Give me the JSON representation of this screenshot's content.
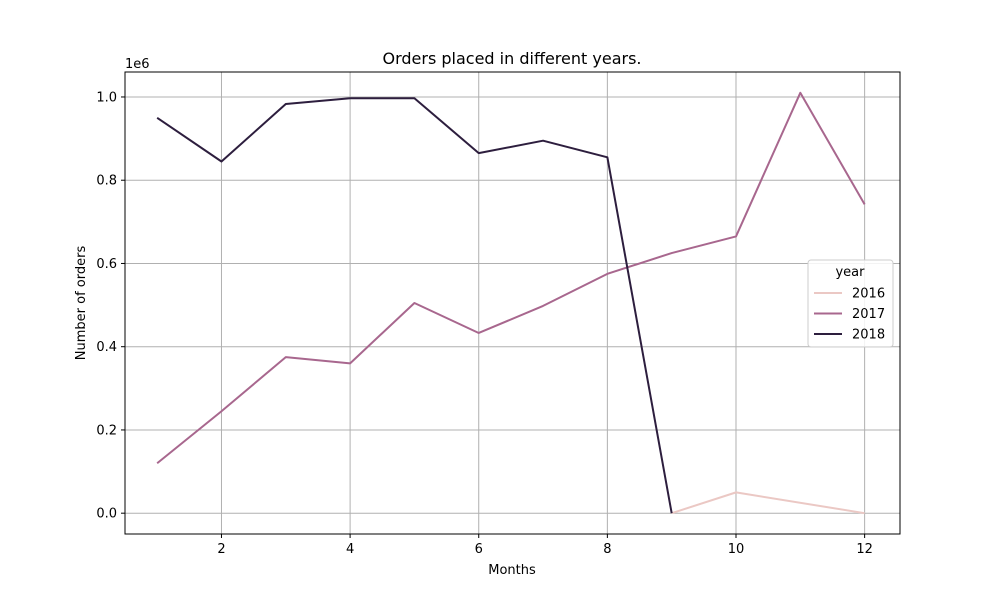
{
  "chart_data": {
    "type": "line",
    "title": "Orders placed in different years.",
    "xlabel": "Months",
    "ylabel": "Number of orders",
    "y_scale_label": "1e6",
    "xlim": [
      0.5,
      12.55
    ],
    "ylim": [
      -0.05,
      1.06
    ],
    "x_ticks": [
      2,
      4,
      6,
      8,
      10,
      12
    ],
    "y_ticks": [
      0.0,
      0.2,
      0.4,
      0.6,
      0.8,
      1.0
    ],
    "x_tick_labels": [
      "2",
      "4",
      "6",
      "8",
      "10",
      "12"
    ],
    "y_tick_labels": [
      "0.0",
      "0.2",
      "0.4",
      "0.6",
      "0.8",
      "1.0"
    ],
    "grid": true,
    "legend": {
      "title": "year",
      "placement": "center-right"
    },
    "series": [
      {
        "name": "2016",
        "color": "#ebc8c4",
        "x": [
          9,
          10,
          12
        ],
        "y": [
          0.0,
          0.05,
          0.0
        ]
      },
      {
        "name": "2017",
        "color": "#a8678e",
        "x": [
          1,
          2,
          3,
          4,
          5,
          6,
          7,
          8,
          9,
          10,
          11,
          12
        ],
        "y": [
          0.12,
          0.245,
          0.375,
          0.36,
          0.505,
          0.433,
          0.498,
          0.575,
          0.625,
          0.665,
          1.01,
          0.742
        ]
      },
      {
        "name": "2018",
        "color": "#2d1e3e",
        "x": [
          1,
          2,
          3,
          4,
          5,
          6,
          7,
          8,
          9
        ],
        "y": [
          0.95,
          0.845,
          0.983,
          0.997,
          0.997,
          0.865,
          0.895,
          0.855,
          0.0
        ]
      }
    ]
  }
}
